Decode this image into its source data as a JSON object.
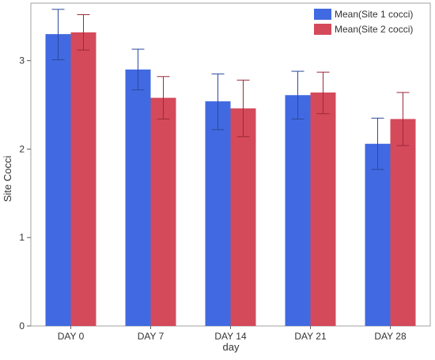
{
  "chart_data": {
    "type": "bar",
    "title": "",
    "xlabel": "day",
    "ylabel": "Site Cocci",
    "categories": [
      "DAY 0",
      "DAY 7",
      "DAY 14",
      "DAY 21",
      "DAY 28"
    ],
    "ylim": [
      0,
      3.65
    ],
    "yticks": [
      0,
      1,
      2,
      3
    ],
    "grid": false,
    "legend_position": "top-right",
    "series": [
      {
        "name": "Mean(Site 1 cocci)",
        "color": "#4169E1",
        "values": [
          3.3,
          2.9,
          2.54,
          2.61,
          2.06
        ],
        "error_low": [
          3.01,
          2.67,
          2.22,
          2.34,
          1.77
        ],
        "error_high": [
          3.58,
          3.13,
          2.85,
          2.88,
          2.35
        ]
      },
      {
        "name": "Mean(Site 2 cocci)",
        "color": "#D44A5B",
        "values": [
          3.32,
          2.58,
          2.46,
          2.64,
          2.34
        ],
        "error_low": [
          3.12,
          2.34,
          2.14,
          2.4,
          2.04
        ],
        "error_high": [
          3.52,
          2.82,
          2.78,
          2.87,
          2.64
        ]
      }
    ]
  }
}
